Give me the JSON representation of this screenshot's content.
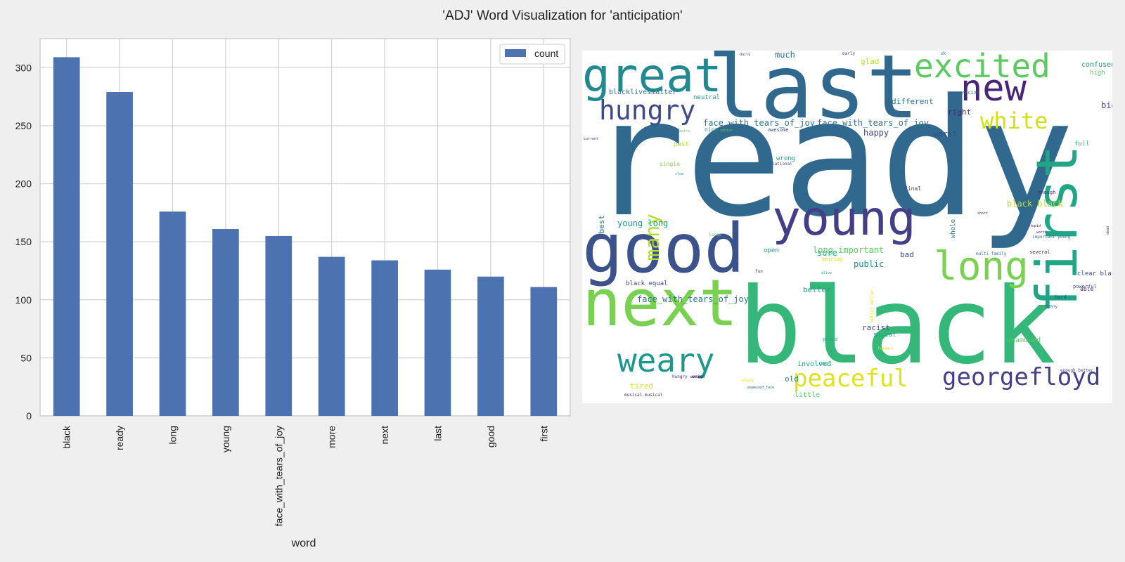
{
  "figure": {
    "title": "'ADJ' Word Visualization for 'anticipation'"
  },
  "chart_data": [
    {
      "type": "bar",
      "title": "",
      "xlabel": "word",
      "ylabel": "",
      "categories": [
        "black",
        "ready",
        "long",
        "young",
        "face_with_tears_of_joy",
        "more",
        "next",
        "last",
        "good",
        "first"
      ],
      "series": [
        {
          "name": "count",
          "color": "#4c72b0",
          "values": [
            309,
            279,
            176,
            161,
            155,
            137,
            134,
            126,
            120,
            111
          ]
        }
      ],
      "yticks": [
        0,
        50,
        100,
        150,
        200,
        250,
        300
      ],
      "ylim": [
        0,
        325
      ],
      "grid": true,
      "legend": "top-right"
    },
    {
      "type": "wordcloud",
      "background": "#ffffff",
      "words": [
        {
          "text": "ready",
          "size": 230,
          "color": "#31688e"
        },
        {
          "text": "black",
          "size": 150,
          "color": "#35b779"
        },
        {
          "text": "last",
          "size": 125,
          "color": "#31688e"
        },
        {
          "text": "next",
          "size": 92,
          "color": "#7ad151"
        },
        {
          "text": "first",
          "size": 80,
          "color": "#21a585",
          "vertical": true
        },
        {
          "text": "good",
          "size": 96,
          "color": "#3b528b"
        },
        {
          "text": "young",
          "size": 68,
          "color": "#433e85"
        },
        {
          "text": "great",
          "size": 66,
          "color": "#23898e"
        },
        {
          "text": "long",
          "size": 56,
          "color": "#7ad151"
        },
        {
          "text": "new",
          "size": 52,
          "color": "#482677"
        },
        {
          "text": "excited",
          "size": 46,
          "color": "#5ec962"
        },
        {
          "text": "weary",
          "size": 46,
          "color": "#1f988b"
        },
        {
          "text": "hungry",
          "size": 38,
          "color": "#3e4a89"
        },
        {
          "text": "georgefloyd",
          "size": 34,
          "color": "#433e85"
        },
        {
          "text": "peaceful",
          "size": 34,
          "color": "#dde318"
        },
        {
          "text": "white",
          "size": 32,
          "color": "#d0e11c"
        },
        {
          "text": "many",
          "size": 28,
          "color": "#b5de2b",
          "vertical": true
        },
        {
          "text": "face_with_tears_of_joy",
          "size": 12,
          "color": "#2c728e"
        },
        {
          "text": "face_with_tears_of_joy",
          "size": 12,
          "color": "#2c728e"
        },
        {
          "text": "face_with_tears_of_joy",
          "size": 12,
          "color": "#2c728e"
        },
        {
          "text": "blacklivesmatter",
          "size": 10,
          "color": "#2c728e"
        },
        {
          "text": "black black",
          "size": 12,
          "color": "#b5de2b"
        },
        {
          "text": "young long",
          "size": 12,
          "color": "#1f988b"
        },
        {
          "text": "long important",
          "size": 12,
          "color": "#5ec962"
        },
        {
          "text": "best",
          "size": 11,
          "color": "#2c728e",
          "vertical": true
        },
        {
          "text": "whole",
          "size": 9,
          "color": "#2c728e",
          "vertical": true
        },
        {
          "text": "different",
          "size": 11,
          "color": "#2c728e"
        },
        {
          "text": "happy",
          "size": 12,
          "color": "#3e4a89"
        },
        {
          "text": "right",
          "size": 11,
          "color": "#482677"
        },
        {
          "text": "worst",
          "size": 11,
          "color": "#3e4a89"
        },
        {
          "text": "big",
          "size": 12,
          "color": "#3e4a89"
        },
        {
          "text": "glad",
          "size": 11,
          "color": "#b5de2b"
        },
        {
          "text": "much",
          "size": 12,
          "color": "#2c728e"
        },
        {
          "text": "confused",
          "size": 10,
          "color": "#1f988b"
        },
        {
          "text": "high",
          "size": 9,
          "color": "#5ec962"
        },
        {
          "text": "neutral",
          "size": 9,
          "color": "#21a585"
        },
        {
          "text": "racial",
          "size": 7,
          "color": "#2c728e"
        },
        {
          "text": "nice",
          "size": 8,
          "color": "#1f988b"
        },
        {
          "text": "awesome",
          "size": 7,
          "color": "#3e4a89"
        },
        {
          "text": "past",
          "size": 9,
          "color": "#b5de2b"
        },
        {
          "text": "full",
          "size": 9,
          "color": "#35b779"
        },
        {
          "text": "wrong",
          "size": 9,
          "color": "#21a585"
        },
        {
          "text": "national",
          "size": 6,
          "color": "#433e85"
        },
        {
          "text": "single",
          "size": 8,
          "color": "#7ad151"
        },
        {
          "text": "final",
          "size": 8,
          "color": "#433e85"
        },
        {
          "text": "enough",
          "size": 7,
          "color": "#482677"
        },
        {
          "text": "sure",
          "size": 12,
          "color": "#21a585"
        },
        {
          "text": "bad",
          "size": 11,
          "color": "#3e4a89"
        },
        {
          "text": "public",
          "size": 12,
          "color": "#23898e"
        },
        {
          "text": "open",
          "size": 9,
          "color": "#21a585"
        },
        {
          "text": "amazing",
          "size": 7,
          "color": "#dde318"
        },
        {
          "text": "better",
          "size": 11,
          "color": "#1f988b"
        },
        {
          "text": "black equal",
          "size": 9,
          "color": "#3e4a89"
        },
        {
          "text": "clear black",
          "size": 9,
          "color": "#3e4a89"
        },
        {
          "text": "powerful",
          "size": 7,
          "color": "#3e4a89"
        },
        {
          "text": "able",
          "size": 8,
          "color": "#482677"
        },
        {
          "text": "hard",
          "size": 7,
          "color": "#433e85"
        },
        {
          "text": "funny",
          "size": 6,
          "color": "#31688e"
        },
        {
          "text": "racist",
          "size": 11,
          "color": "#3e4a89"
        },
        {
          "text": "social",
          "size": 9,
          "color": "#21a585"
        },
        {
          "text": "proud",
          "size": 7,
          "color": "#21a585"
        },
        {
          "text": "unamused",
          "size": 10,
          "color": "#5ec962"
        },
        {
          "text": "cool",
          "size": 8,
          "color": "#21a585"
        },
        {
          "text": "involved",
          "size": 10,
          "color": "#21a585"
        },
        {
          "text": "old",
          "size": 11,
          "color": "#23898e"
        },
        {
          "text": "tired",
          "size": 11,
          "color": "#d0e11c"
        },
        {
          "text": "little",
          "size": 10,
          "color": "#5ec962"
        },
        {
          "text": "hungry weary",
          "size": 6,
          "color": "#482677"
        },
        {
          "text": "musical musical",
          "size": 6,
          "color": "#482677"
        },
        {
          "text": "unamused_face",
          "size": 5,
          "color": "#31688e"
        },
        {
          "text": "several",
          "size": 7,
          "color": "#482677"
        },
        {
          "text": "multi family",
          "size": 6,
          "color": "#2c728e"
        },
        {
          "text": "important young",
          "size": 6,
          "color": "#2c728e"
        },
        {
          "text": "enough better",
          "size": 6,
          "color": "#433e85"
        },
        {
          "text": "weird",
          "size": 6,
          "color": "#482677"
        },
        {
          "text": "early",
          "size": 6,
          "color": "#3e4a89"
        },
        {
          "text": "daily",
          "size": 5,
          "color": "#433e85"
        },
        {
          "text": "ok",
          "size": 6,
          "color": "#31688e"
        },
        {
          "text": "current",
          "size": 5,
          "color": "#433e85"
        },
        {
          "text": "senior",
          "size": 5,
          "color": "#5ec962"
        },
        {
          "text": "extra",
          "size": 5,
          "color": "#5ec962"
        },
        {
          "text": "slow",
          "size": 5,
          "color": "#1f988b"
        },
        {
          "text": "short",
          "size": 5,
          "color": "#482677"
        },
        {
          "text": "stupid",
          "size": 5,
          "color": "#482677"
        },
        {
          "text": "worth",
          "size": 5,
          "color": "#482677"
        },
        {
          "text": "dead",
          "size": 5,
          "color": "#482677",
          "vertical": true
        },
        {
          "text": "large",
          "size": 6,
          "color": "#5ec962"
        },
        {
          "text": "fun",
          "size": 6,
          "color": "#482677"
        },
        {
          "text": "alive",
          "size": 5,
          "color": "#21a585"
        },
        {
          "text": "sleepy",
          "size": 5,
          "color": "#dde318"
        },
        {
          "text": "better better",
          "size": 6,
          "color": "#dde318",
          "vertical": true
        },
        {
          "text": "former",
          "size": 6,
          "color": "#dde318"
        }
      ]
    }
  ]
}
